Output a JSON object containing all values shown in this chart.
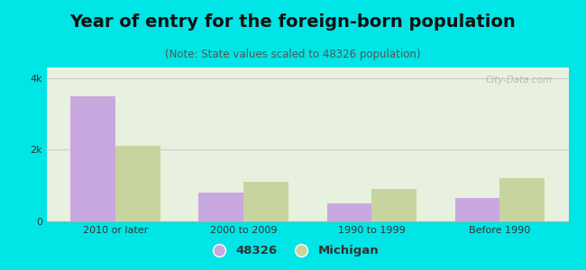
{
  "title": "Year of entry for the foreign-born population",
  "subtitle": "(Note: State values scaled to 48326 population)",
  "categories": [
    "2010 or later",
    "2000 to 2009",
    "1990 to 1999",
    "Before 1990"
  ],
  "values_48326": [
    3500,
    800,
    500,
    650
  ],
  "values_michigan": [
    2100,
    1100,
    900,
    1200
  ],
  "color_48326": "#c9a8e0",
  "color_michigan": "#c8d4a0",
  "background_outer": "#00e5e5",
  "background_inner": "#e8f0e0",
  "ylim": [
    0,
    4300
  ],
  "yticks": [
    0,
    2000,
    4000
  ],
  "ytick_labels": [
    "0",
    "2k",
    "4k"
  ],
  "legend_label_48326": "48326",
  "legend_label_michigan": "Michigan",
  "bar_width": 0.35,
  "title_fontsize": 14,
  "subtitle_fontsize": 8.5,
  "watermark": "City-Data.com"
}
